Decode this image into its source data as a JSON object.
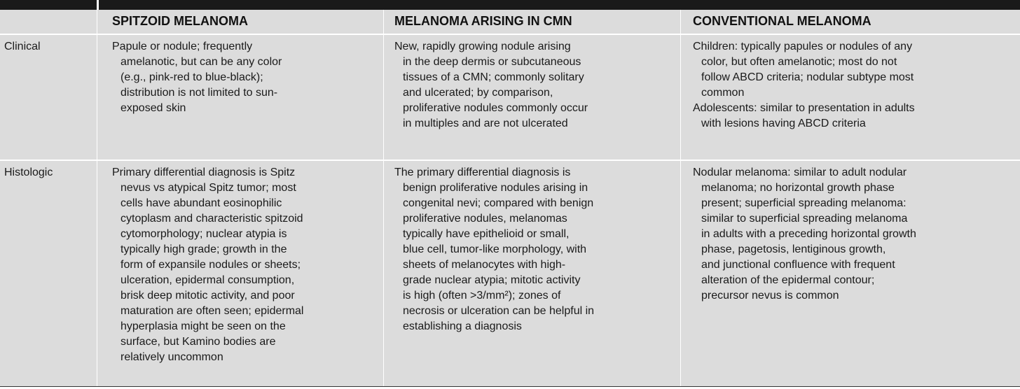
{
  "columns": {
    "spitzoid": "SPITZOID MELANOMA",
    "cmn": "MELANOMA ARISING IN CMN",
    "conventional": "CONVENTIONAL MELANOMA"
  },
  "rows": {
    "clinical": {
      "label": "Clinical",
      "spitzoid": [
        "Papule or nodule; frequently",
        "amelanotic, but can be any color",
        "(e.g., pink-red to blue-black);",
        "distribution is not limited to sun-",
        "exposed skin"
      ],
      "cmn": [
        "New, rapidly growing nodule arising",
        "in the deep dermis or subcutaneous",
        "tissues of a CMN; commonly solitary",
        "and ulcerated; by comparison,",
        "proliferative nodules commonly occur",
        "in multiples and are not ulcerated"
      ],
      "conventional": [
        "Children: typically papules or nodules of any",
        "color, but often amelanotic; most do not",
        "follow ABCD criteria; nodular subtype most",
        "common",
        "Adolescents: similar to presentation in adults",
        "with lesions having ABCD criteria"
      ]
    },
    "histologic": {
      "label": "Histologic",
      "spitzoid": [
        "Primary differential diagnosis is Spitz",
        "nevus vs atypical Spitz tumor; most",
        "cells have abundant eosinophilic",
        "cytoplasm and characteristic spitzoid",
        "cytomorphology; nuclear atypia is",
        "typically high grade; growth in the",
        "form of expansile nodules or sheets;",
        "ulceration, epidermal consumption,",
        "brisk deep mitotic activity, and poor",
        "maturation are often seen; epidermal",
        "hyperplasia might be seen on the",
        "surface, but Kamino bodies are",
        "relatively uncommon"
      ],
      "cmn": [
        "The primary differential diagnosis is",
        "benign proliferative nodules arising in",
        "congenital nevi; compared with benign",
        "proliferative nodules, melanomas",
        "typically have epithelioid or small,",
        "blue cell, tumor-like morphology, with",
        "sheets of melanocytes with high-",
        "grade nuclear atypia; mitotic activity",
        "is high (often >3/mm²); zones of",
        "necrosis or ulceration can be helpful in",
        "establishing a diagnosis"
      ],
      "conventional": [
        "Nodular melanoma: similar to adult nodular",
        "melanoma; no horizontal growth phase",
        "present; superficial spreading melanoma:",
        "similar to superficial spreading melanoma",
        "in adults with a preceding horizontal growth",
        "phase, pagetosis, lentiginous growth,",
        "and junctional confluence with frequent",
        "alteration of the epidermal contour;",
        "precursor nevus is common"
      ]
    }
  }
}
